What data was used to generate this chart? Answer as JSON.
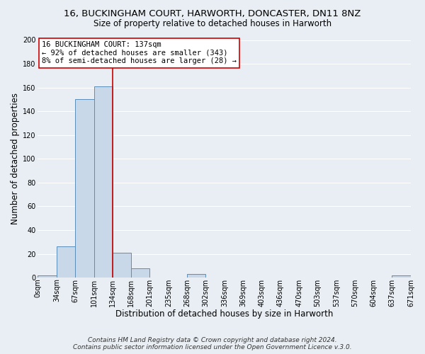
{
  "title": "16, BUCKINGHAM COURT, HARWORTH, DONCASTER, DN11 8NZ",
  "subtitle": "Size of property relative to detached houses in Harworth",
  "xlabel": "Distribution of detached houses by size in Harworth",
  "ylabel": "Number of detached properties",
  "bar_color": "#c8d8e8",
  "bar_edge_color": "#5b8db8",
  "bin_edges": [
    0,
    34,
    67,
    101,
    134,
    168,
    201,
    235,
    268,
    302,
    336,
    369,
    403,
    436,
    470,
    503,
    537,
    570,
    604,
    637,
    671
  ],
  "bin_labels": [
    "0sqm",
    "34sqm",
    "67sqm",
    "101sqm",
    "134sqm",
    "168sqm",
    "201sqm",
    "235sqm",
    "268sqm",
    "302sqm",
    "336sqm",
    "369sqm",
    "403sqm",
    "436sqm",
    "470sqm",
    "503sqm",
    "537sqm",
    "570sqm",
    "604sqm",
    "637sqm",
    "671sqm"
  ],
  "counts": [
    2,
    26,
    150,
    161,
    21,
    8,
    0,
    0,
    3,
    0,
    0,
    0,
    0,
    0,
    0,
    0,
    0,
    0,
    0,
    2
  ],
  "vline_x": 134,
  "ylim": [
    0,
    200
  ],
  "yticks": [
    0,
    20,
    40,
    60,
    80,
    100,
    120,
    140,
    160,
    180,
    200
  ],
  "annotation_line1": "16 BUCKINGHAM COURT: 137sqm",
  "annotation_line2": "← 92% of detached houses are smaller (343)",
  "annotation_line3": "8% of semi-detached houses are larger (28) →",
  "footer1": "Contains HM Land Registry data © Crown copyright and database right 2024.",
  "footer2": "Contains public sector information licensed under the Open Government Licence v.3.0.",
  "background_color": "#e8eef4",
  "grid_color": "#ffffff",
  "annotation_box_color": "#ffffff",
  "annotation_box_edge": "#cc0000",
  "vline_color": "#cc0000",
  "title_fontsize": 9.5,
  "subtitle_fontsize": 8.5,
  "axis_label_fontsize": 8.5,
  "tick_fontsize": 7,
  "annotation_fontsize": 7.5,
  "footer_fontsize": 6.5
}
